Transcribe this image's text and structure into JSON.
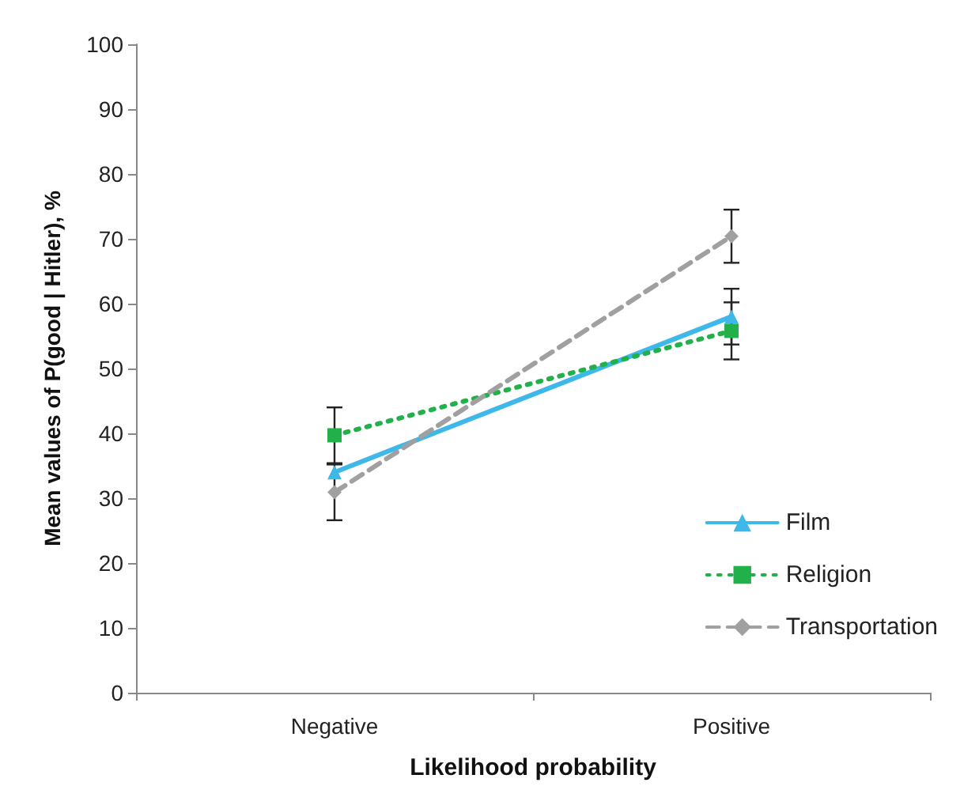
{
  "chart_data": {
    "type": "line",
    "xlabel": "Likelihood probability",
    "ylabel": "Mean values of P(good | Hitler), %",
    "categories": [
      "Negative",
      "Positive"
    ],
    "ylim": [
      0,
      100
    ],
    "yticks": [
      0,
      10,
      20,
      30,
      40,
      50,
      60,
      70,
      80,
      90,
      100
    ],
    "grid": false,
    "legend": "right",
    "series": [
      {
        "name": "Film",
        "color": "#3db8e8",
        "values": [
          34,
          58
        ],
        "errors": [
          null,
          4.3
        ],
        "marker": "triangle",
        "line_style": "solid"
      },
      {
        "name": "Religion",
        "color": "#22b04b",
        "values": [
          39.7,
          55.8
        ],
        "errors": [
          4.3,
          4.4
        ],
        "marker": "square",
        "line_style": "dotted"
      },
      {
        "name": "Transportation",
        "color": "#a0a0a0",
        "values": [
          30.9,
          70.4
        ],
        "errors": [
          4.3,
          4.1
        ],
        "marker": "diamond",
        "line_style": "dashed"
      }
    ]
  }
}
